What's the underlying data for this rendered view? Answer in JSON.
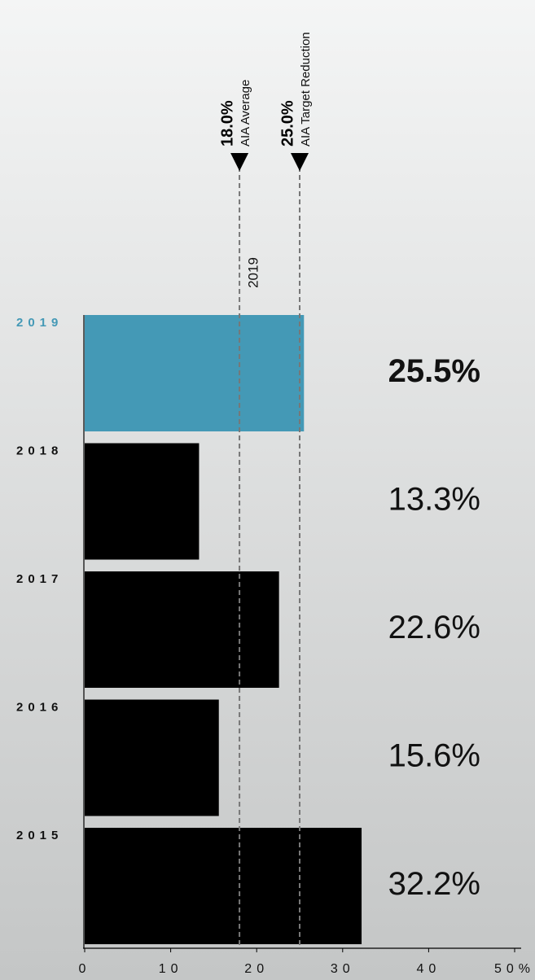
{
  "chart_data": {
    "type": "bar",
    "orientation": "horizontal",
    "categories": [
      "2019",
      "2018",
      "2017",
      "2016",
      "2015"
    ],
    "values": [
      25.5,
      13.3,
      22.6,
      15.6,
      32.2
    ],
    "value_labels": [
      "25.5%",
      "13.3%",
      "22.6%",
      "15.6%",
      "32.2%"
    ],
    "colors": [
      "#4499b6",
      "#000000",
      "#000000",
      "#000000",
      "#000000"
    ],
    "xlim": [
      0,
      50
    ],
    "xticks": [
      0,
      10,
      20,
      30,
      40,
      {
        "value": 50,
        "label": "50%"
      }
    ],
    "reference_lines": [
      {
        "value": 18.0,
        "label": "18.0%",
        "text": "AIA Average"
      },
      {
        "value": 25.0,
        "label": "25.0%",
        "text": "AIA Target Reduction"
      }
    ],
    "annotation": "2019"
  }
}
